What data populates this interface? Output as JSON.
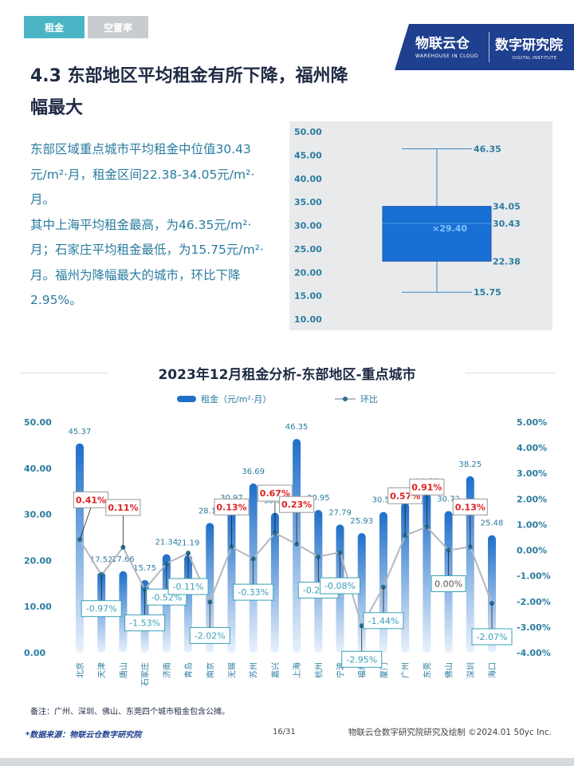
{
  "tabs": [
    {
      "label": "租金",
      "active": true
    },
    {
      "label": "空置率",
      "active": false
    }
  ],
  "logo": {
    "brand_cn": "物联云仓",
    "brand_en": "WAREHOUSE IN CLOUD",
    "institute_cn": "数字研究院",
    "institute_en": "DIGITAL INSTITUTE"
  },
  "page_title": "4.3 东部地区平均租金有所下降，福州降幅最大",
  "paragraphs": [
    "东部区域重点城市平均租金中位值30.43元/m²·月，租金区间22.38-34.05元/m²·月。",
    "其中上海平均租金最高，为46.35元/m²·月；石家庄平均租金最低，为15.75元/m²·月。福州为降幅最大的城市，环比下降2.95%。"
  ],
  "box_chart": {
    "type": "box",
    "min": 15.75,
    "q1": 22.38,
    "median": 30.43,
    "q3": 34.05,
    "max": 46.35,
    "mean": 29.4,
    "ylim": [
      10,
      50
    ],
    "yticks": [
      "50.00",
      "45.00",
      "40.00",
      "35.00",
      "30.00",
      "25.00",
      "20.00",
      "15.00",
      "10.00"
    ],
    "labels": {
      "max": "46.35",
      "q3": "34.05",
      "median": "30.43",
      "mean": "×29.40",
      "q1": "22.38",
      "min": "15.75"
    },
    "box_color": "#1a6fd4"
  },
  "chart_data": {
    "type": "bar",
    "title": "2023年12月租金分析-东部地区-重点城市",
    "categories": [
      "北京",
      "天津",
      "唐山",
      "石家庄",
      "济南",
      "青岛",
      "南京",
      "无锡",
      "苏州",
      "嘉兴",
      "上海",
      "杭州",
      "宁波",
      "福州",
      "厦门",
      "广州",
      "东莞",
      "佛山",
      "深圳",
      "海口"
    ],
    "series": [
      {
        "name": "租金（元/m²·月）",
        "type": "bar",
        "axis": "left",
        "values": [
          45.37,
          17.52,
          17.66,
          15.75,
          21.34,
          21.19,
          28.14,
          30.97,
          36.69,
          30.34,
          46.35,
          30.95,
          27.79,
          25.93,
          30.51,
          32.53,
          34.55,
          30.72,
          38.25,
          25.48
        ],
        "labels": [
          "45.37",
          "17.52",
          "17.66",
          "15.75",
          "21.34",
          "21.19",
          "28.14",
          "30.97",
          "36.69",
          "30.34",
          "46.35",
          "30.95",
          "27.79",
          "25.93",
          "30.51",
          "32.53",
          "34.55",
          "30.72",
          "38.25",
          "25.48"
        ]
      },
      {
        "name": "环比",
        "type": "line",
        "axis": "right",
        "values": [
          0.41,
          -0.97,
          0.11,
          -1.53,
          -0.52,
          -0.11,
          -2.02,
          0.13,
          -0.33,
          0.67,
          0.23,
          -0.25,
          -0.08,
          -2.95,
          -1.44,
          0.57,
          0.91,
          0.0,
          0.13,
          -2.07
        ],
        "labels": [
          "0.41%",
          "-0.97%",
          "0.11%",
          "-1.53%",
          "-0.52%",
          "-0.11%",
          "-2.02%",
          "0.13%",
          "-0.33%",
          "0.67%",
          "0.23%",
          "-0.25%",
          "-0.08%",
          "-2.95%",
          "-1.44%",
          "0.57%",
          "0.91%",
          "0.00%",
          "0.13%",
          "-2.07%"
        ]
      }
    ],
    "ylim": [
      0,
      50
    ],
    "y2lim": [
      -4,
      5
    ],
    "yticks": [
      "0.00",
      "10.00",
      "20.00",
      "30.00",
      "40.00",
      "50.00"
    ],
    "y2ticks": [
      "-4.00%",
      "-3.00%",
      "-2.00%",
      "-1.00%",
      "0.00%",
      "1.00%",
      "2.00%",
      "3.00%",
      "4.00%",
      "5.00%"
    ],
    "legend_position": "top-center",
    "colors": {
      "bar_top": "#1f6fc9",
      "bar_bottom": "#e8f1fb",
      "line": "#b5b8bd",
      "positive": "#e02020",
      "negative": "#3aa0b8"
    }
  },
  "note": "备注：广州、深圳、佛山、东莞四个城市租金包含公摊。",
  "footer": {
    "source": "*数据来源：物联云仓数字研究院",
    "page": "16/31",
    "credit": "物联云仓数字研究院研究及绘制    ©2024.01 50yc Inc."
  }
}
